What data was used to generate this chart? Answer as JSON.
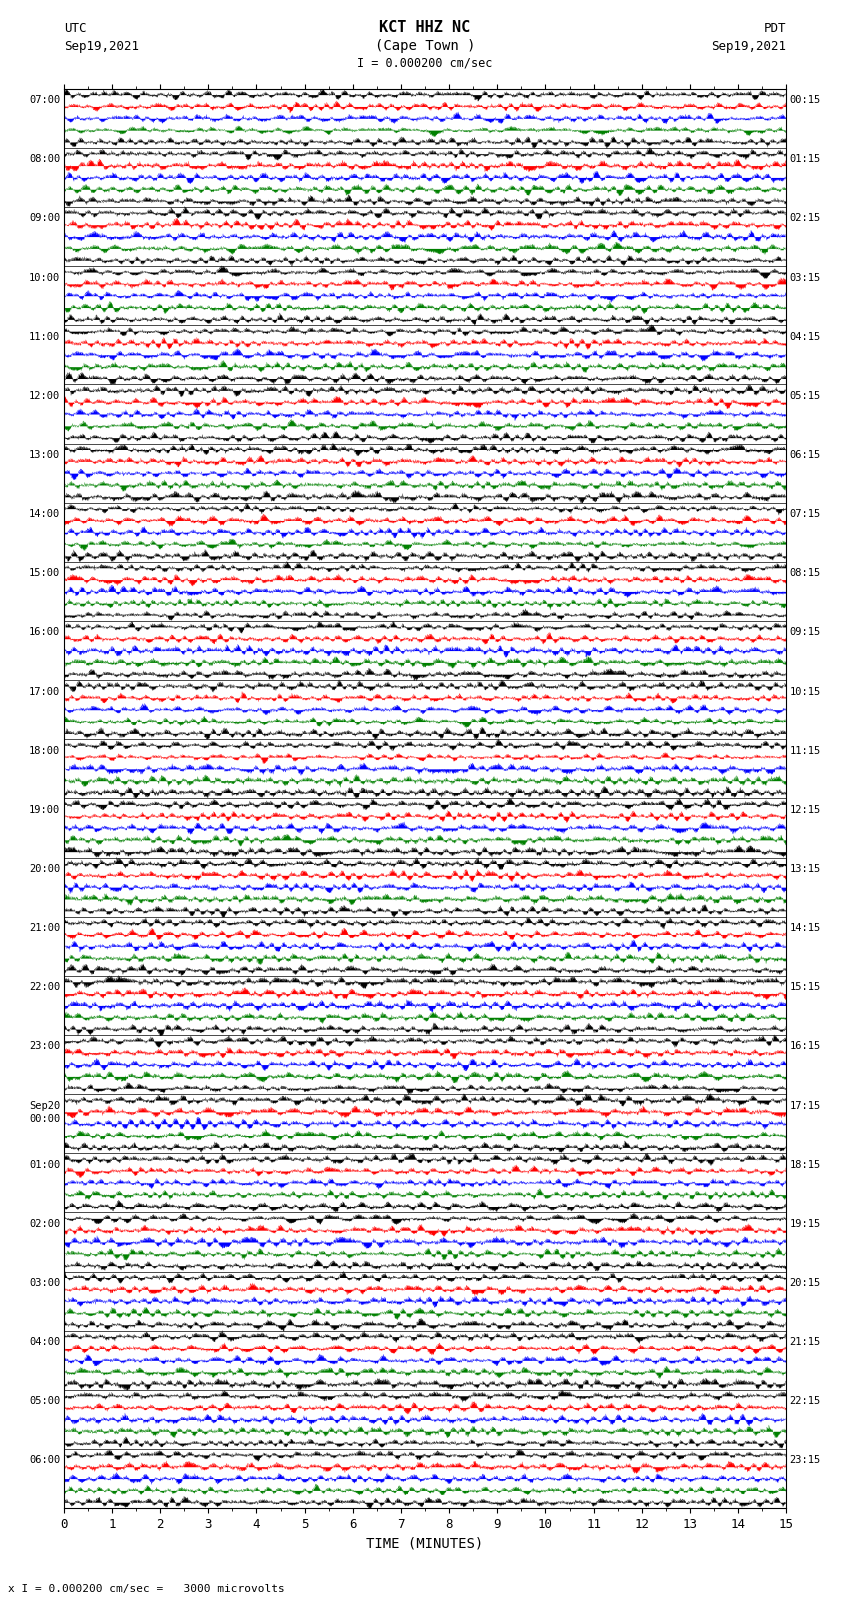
{
  "title_line1": "KCT HHZ NC",
  "title_line2": "(Cape Town )",
  "scale_text": "I = 0.000200 cm/sec",
  "bottom_scale_text": "x I = 0.000200 cm/sec =   3000 microvolts",
  "utc_label": "UTC",
  "utc_date": "Sep19,2021",
  "pdt_label": "PDT",
  "pdt_date": "Sep19,2021",
  "left_times": [
    "07:00",
    "08:00",
    "09:00",
    "10:00",
    "11:00",
    "12:00",
    "13:00",
    "14:00",
    "15:00",
    "16:00",
    "17:00",
    "18:00",
    "19:00",
    "20:00",
    "21:00",
    "22:00",
    "23:00",
    "Sep20\n00:00",
    "01:00",
    "02:00",
    "03:00",
    "04:00",
    "05:00",
    "06:00"
  ],
  "right_times": [
    "00:15",
    "01:15",
    "02:15",
    "03:15",
    "04:15",
    "05:15",
    "06:15",
    "07:15",
    "08:15",
    "09:15",
    "10:15",
    "11:15",
    "12:15",
    "13:15",
    "14:15",
    "15:15",
    "16:15",
    "17:15",
    "18:15",
    "19:15",
    "20:15",
    "21:15",
    "22:15",
    "23:15"
  ],
  "xlabel": "TIME (MINUTES)",
  "xtick_labels": [
    "0",
    "1",
    "2",
    "3",
    "4",
    "5",
    "6",
    "7",
    "8",
    "9",
    "10",
    "11",
    "12",
    "13",
    "14",
    "15"
  ],
  "num_rows": 24,
  "minutes_per_row": 15,
  "sub_traces_per_row": 5,
  "colors_cycle": [
    "black",
    "red",
    "blue",
    "green",
    "black"
  ],
  "bg_color": "white",
  "noise_seed": 42
}
